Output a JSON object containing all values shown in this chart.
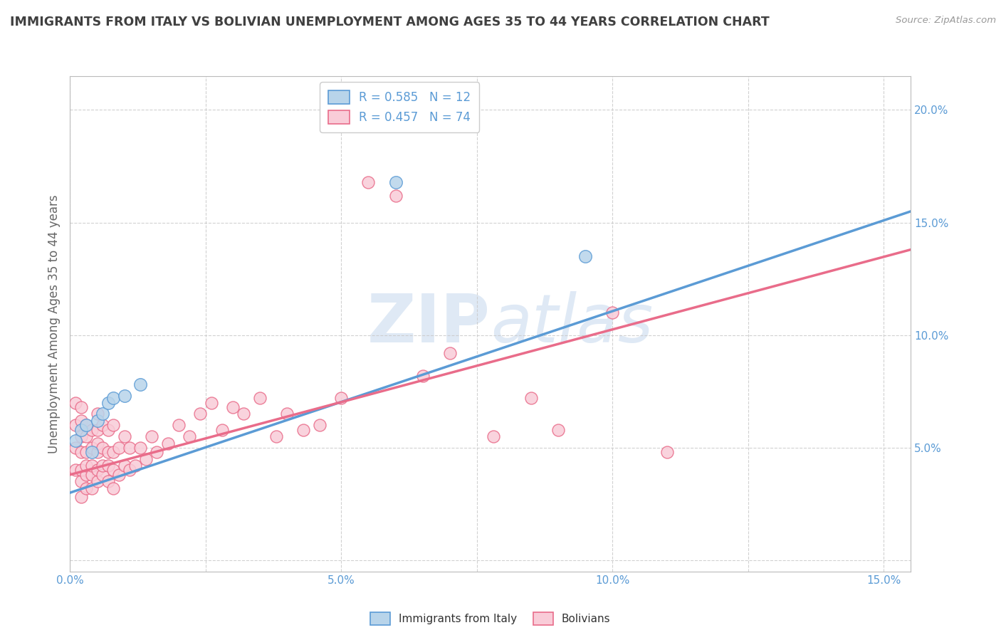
{
  "title": "IMMIGRANTS FROM ITALY VS BOLIVIAN UNEMPLOYMENT AMONG AGES 35 TO 44 YEARS CORRELATION CHART",
  "source": "Source: ZipAtlas.com",
  "ylabel": "Unemployment Among Ages 35 to 44 years",
  "xlim": [
    0.0,
    0.155
  ],
  "ylim": [
    -0.005,
    0.215
  ],
  "xticks": [
    0.0,
    0.025,
    0.05,
    0.075,
    0.1,
    0.125,
    0.15
  ],
  "xtick_labels": [
    "0.0%",
    "",
    "5.0%",
    "",
    "10.0%",
    "",
    "15.0%"
  ],
  "yticks": [
    0.0,
    0.05,
    0.1,
    0.15,
    0.2
  ],
  "ytick_labels": [
    "",
    "5.0%",
    "10.0%",
    "15.0%",
    "20.0%"
  ],
  "legend_italy": "R = 0.585   N = 12",
  "legend_bolivia": "R = 0.457   N = 74",
  "blue_color": "#b8d4ea",
  "blue_edge_color": "#5b9bd5",
  "pink_color": "#f9ccd8",
  "pink_edge_color": "#e96c8a",
  "blue_scatter": [
    [
      0.001,
      0.053
    ],
    [
      0.002,
      0.058
    ],
    [
      0.003,
      0.06
    ],
    [
      0.004,
      0.048
    ],
    [
      0.005,
      0.062
    ],
    [
      0.006,
      0.065
    ],
    [
      0.007,
      0.07
    ],
    [
      0.008,
      0.072
    ],
    [
      0.01,
      0.073
    ],
    [
      0.013,
      0.078
    ],
    [
      0.06,
      0.168
    ],
    [
      0.095,
      0.135
    ]
  ],
  "pink_scatter": [
    [
      0.001,
      0.04
    ],
    [
      0.001,
      0.05
    ],
    [
      0.001,
      0.06
    ],
    [
      0.001,
      0.07
    ],
    [
      0.002,
      0.028
    ],
    [
      0.002,
      0.035
    ],
    [
      0.002,
      0.04
    ],
    [
      0.002,
      0.048
    ],
    [
      0.002,
      0.055
    ],
    [
      0.002,
      0.062
    ],
    [
      0.002,
      0.068
    ],
    [
      0.003,
      0.032
    ],
    [
      0.003,
      0.038
    ],
    [
      0.003,
      0.042
    ],
    [
      0.003,
      0.048
    ],
    [
      0.003,
      0.055
    ],
    [
      0.003,
      0.06
    ],
    [
      0.004,
      0.032
    ],
    [
      0.004,
      0.038
    ],
    [
      0.004,
      0.042
    ],
    [
      0.004,
      0.05
    ],
    [
      0.004,
      0.058
    ],
    [
      0.005,
      0.035
    ],
    [
      0.005,
      0.04
    ],
    [
      0.005,
      0.048
    ],
    [
      0.005,
      0.052
    ],
    [
      0.005,
      0.058
    ],
    [
      0.005,
      0.065
    ],
    [
      0.006,
      0.038
    ],
    [
      0.006,
      0.042
    ],
    [
      0.006,
      0.05
    ],
    [
      0.006,
      0.06
    ],
    [
      0.007,
      0.035
    ],
    [
      0.007,
      0.042
    ],
    [
      0.007,
      0.048
    ],
    [
      0.007,
      0.058
    ],
    [
      0.008,
      0.032
    ],
    [
      0.008,
      0.04
    ],
    [
      0.008,
      0.048
    ],
    [
      0.008,
      0.06
    ],
    [
      0.009,
      0.038
    ],
    [
      0.009,
      0.05
    ],
    [
      0.01,
      0.042
    ],
    [
      0.01,
      0.055
    ],
    [
      0.011,
      0.04
    ],
    [
      0.011,
      0.05
    ],
    [
      0.012,
      0.042
    ],
    [
      0.013,
      0.05
    ],
    [
      0.014,
      0.045
    ],
    [
      0.015,
      0.055
    ],
    [
      0.016,
      0.048
    ],
    [
      0.018,
      0.052
    ],
    [
      0.02,
      0.06
    ],
    [
      0.022,
      0.055
    ],
    [
      0.024,
      0.065
    ],
    [
      0.026,
      0.07
    ],
    [
      0.028,
      0.058
    ],
    [
      0.03,
      0.068
    ],
    [
      0.032,
      0.065
    ],
    [
      0.035,
      0.072
    ],
    [
      0.038,
      0.055
    ],
    [
      0.04,
      0.065
    ],
    [
      0.043,
      0.058
    ],
    [
      0.046,
      0.06
    ],
    [
      0.05,
      0.072
    ],
    [
      0.055,
      0.168
    ],
    [
      0.06,
      0.162
    ],
    [
      0.065,
      0.082
    ],
    [
      0.07,
      0.092
    ],
    [
      0.078,
      0.055
    ],
    [
      0.085,
      0.072
    ],
    [
      0.09,
      0.058
    ],
    [
      0.1,
      0.11
    ],
    [
      0.11,
      0.048
    ]
  ],
  "blue_line_x": [
    0.0,
    0.155
  ],
  "blue_line_y": [
    0.03,
    0.155
  ],
  "pink_line_x": [
    0.0,
    0.155
  ],
  "pink_line_y": [
    0.038,
    0.138
  ],
  "watermark_zip": "ZIP",
  "watermark_atlas": "atlas",
  "grid_color": "#cccccc",
  "title_color": "#404040",
  "axis_label_color": "#5b9bd5",
  "ylabel_color": "#666666",
  "bottom_label_italy": "Immigrants from Italy",
  "bottom_label_bolivia": "Bolivians"
}
